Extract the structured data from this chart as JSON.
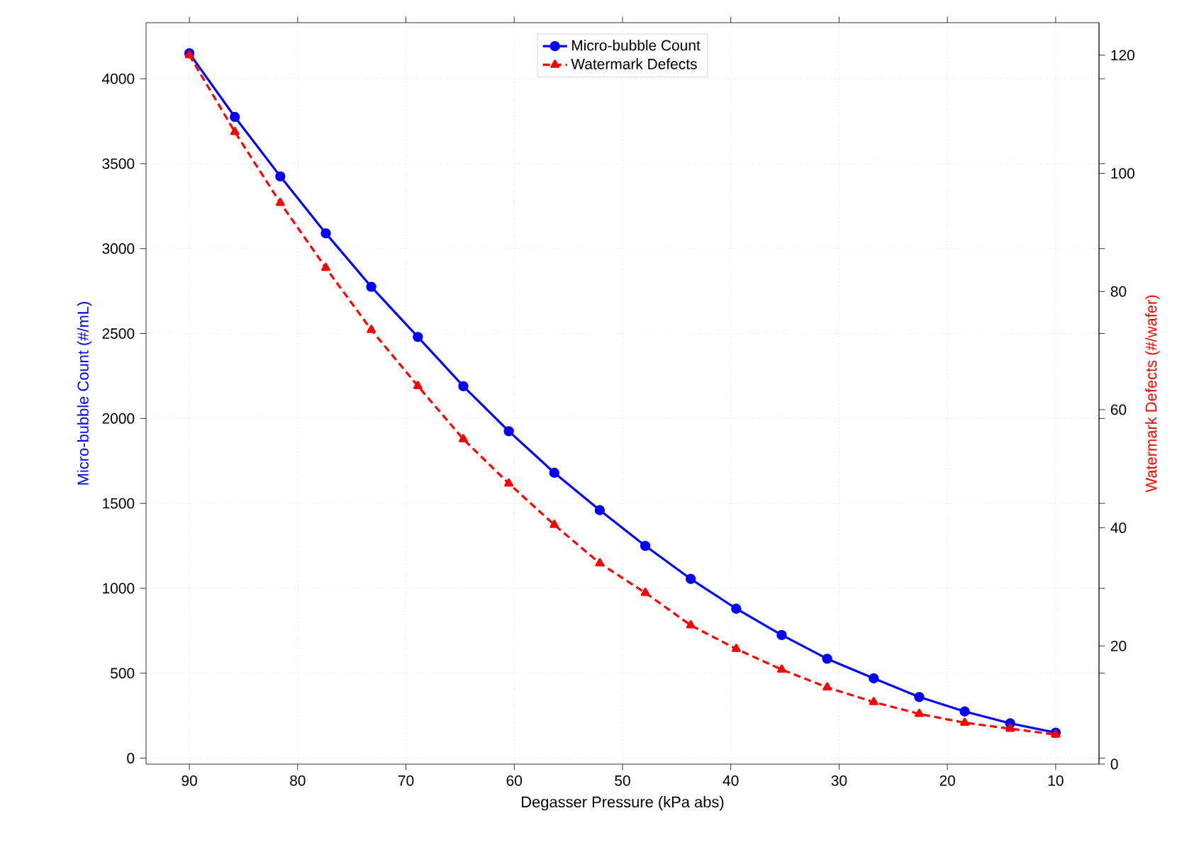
{
  "chart_data": {
    "type": "line",
    "xlabel": "Degasser Pressure (kPa abs)",
    "ylabel": "Micro-bubble Count (#/mL)",
    "y2label": "Watermark Defects (#/wafer)",
    "x": [
      90,
      85.8,
      81.6,
      77.4,
      73.2,
      68.9,
      64.7,
      60.5,
      56.3,
      52.1,
      47.9,
      43.7,
      39.5,
      35.3,
      31.1,
      26.8,
      22.6,
      18.4,
      14.2,
      10
    ],
    "series": [
      {
        "name": "Micro-bubble Count",
        "color": "#0000ff",
        "marker": "circle",
        "line_style": "solid",
        "values": [
          4150,
          3775,
          3425,
          3090,
          2775,
          2480,
          2190,
          1925,
          1680,
          1460,
          1250,
          1055,
          880,
          725,
          585,
          470,
          360,
          275,
          205,
          150
        ]
      },
      {
        "name": "Watermark Defects",
        "color": "#ff0000",
        "marker": "triangle",
        "line_style": "dashed",
        "axis": "y2",
        "values": [
          120,
          107,
          95,
          84,
          73.5,
          64,
          55,
          47.5,
          40.5,
          34,
          29,
          23.5,
          19.5,
          16,
          13,
          10.5,
          8.5,
          7,
          6,
          5
        ]
      }
    ],
    "xlim": [
      94,
      6
    ],
    "xticks": [
      90,
      80,
      70,
      60,
      50,
      40,
      30,
      20,
      10
    ],
    "ylim": [
      -35,
      4330
    ],
    "yticks": [
      0,
      500,
      1000,
      1500,
      2000,
      2500,
      3000,
      3500,
      4000
    ],
    "y2lim": [
      0,
      125.5
    ],
    "y2ticks": [
      0,
      20,
      40,
      60,
      80,
      100,
      120
    ],
    "grid": true,
    "legend": "top"
  }
}
